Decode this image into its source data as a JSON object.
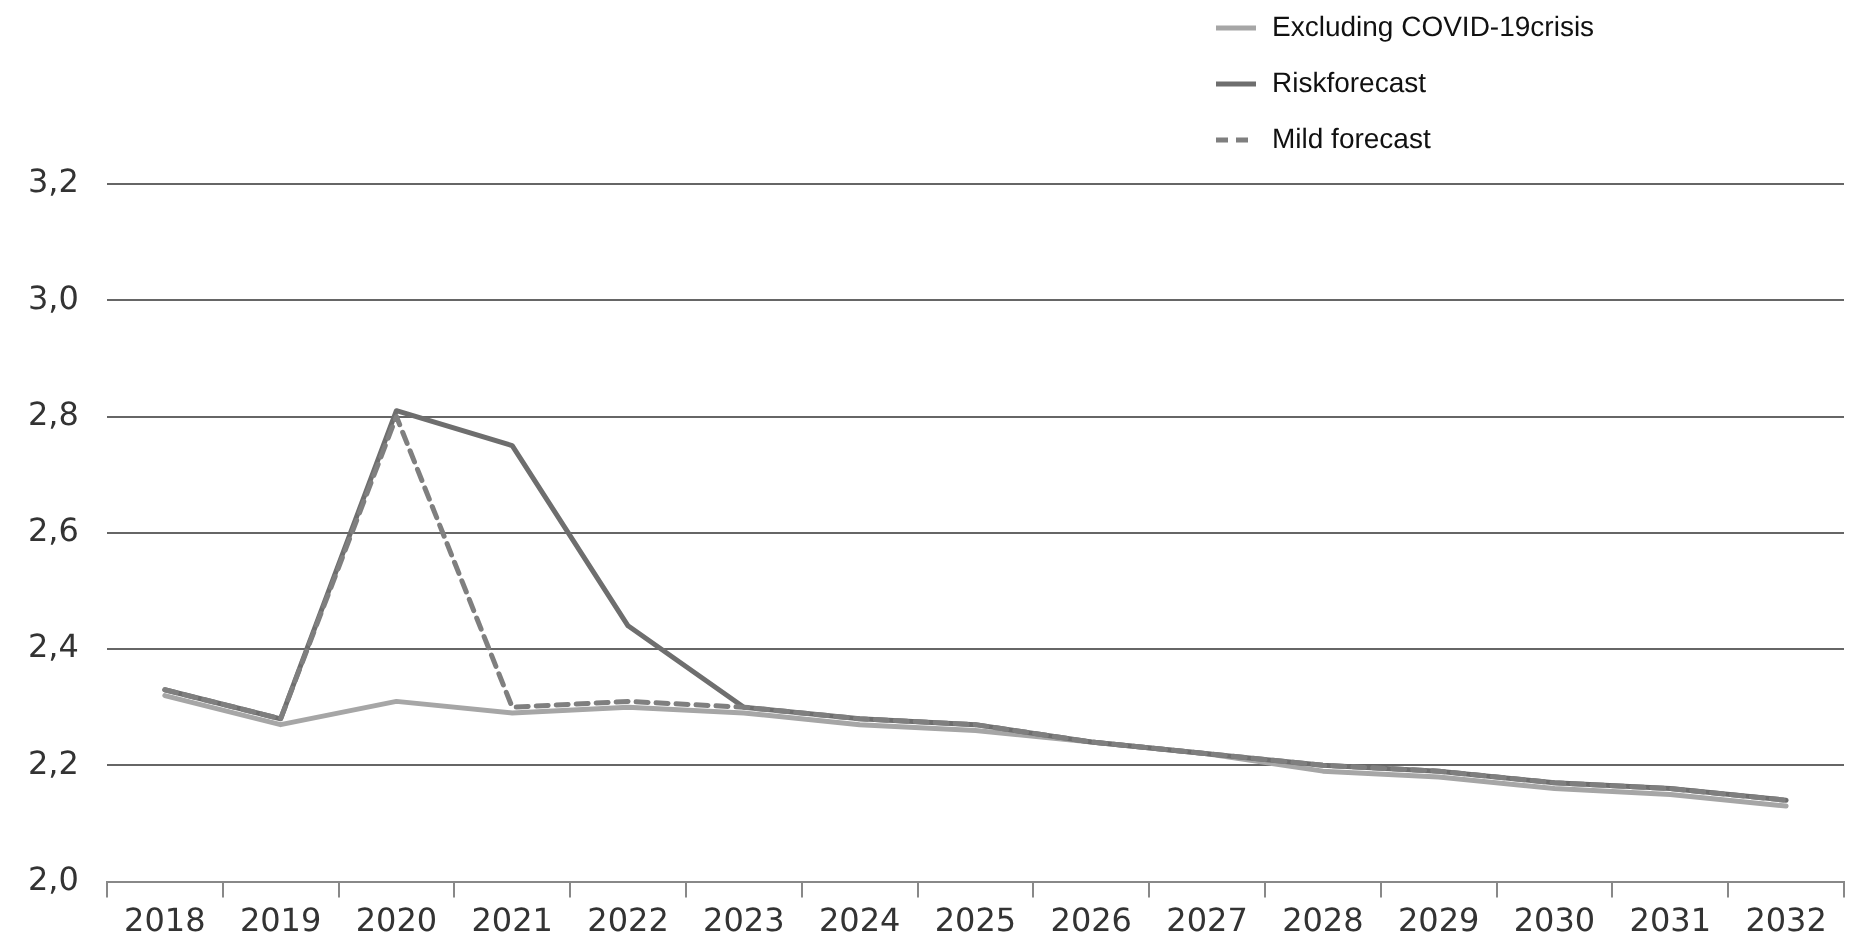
{
  "chart_data": {
    "type": "line",
    "categories": [
      "2018",
      "2019",
      "2020",
      "2021",
      "2022",
      "2023",
      "2024",
      "2025",
      "2026",
      "2027",
      "2028",
      "2029",
      "2030",
      "2031",
      "2032"
    ],
    "series": [
      {
        "name": "Excluding COVID-19crisis",
        "color": "#a6a6a6",
        "values": [
          2.32,
          2.27,
          2.31,
          2.29,
          2.3,
          2.29,
          2.27,
          2.26,
          2.24,
          2.22,
          2.19,
          2.18,
          2.16,
          2.15,
          2.13
        ]
      },
      {
        "name": "Riskforecast",
        "color": "#6e6e6e",
        "values": [
          2.33,
          2.28,
          2.81,
          2.75,
          2.44,
          2.3,
          2.28,
          2.27,
          2.24,
          2.22,
          2.2,
          2.19,
          2.17,
          2.16,
          2.14
        ]
      },
      {
        "name": "Mild forecast",
        "color": "#7f7f7f",
        "line_style": "dashed",
        "values": [
          2.33,
          2.28,
          2.8,
          2.3,
          2.31,
          2.3,
          2.28,
          2.27,
          2.24,
          2.22,
          2.2,
          2.19,
          2.17,
          2.16,
          2.14
        ]
      }
    ],
    "ylim": [
      2.0,
      3.2
    ],
    "yticks": [
      {
        "value": 2.0,
        "label": "2,0"
      },
      {
        "value": 2.2,
        "label": "2,2"
      },
      {
        "value": 2.4,
        "label": "2,4"
      },
      {
        "value": 2.6,
        "label": "2,6"
      },
      {
        "value": 2.8,
        "label": "2,8"
      },
      {
        "value": 3.0,
        "label": "3,0"
      },
      {
        "value": 3.2,
        "label": "3,2"
      }
    ],
    "grid": "y",
    "legend": "top right",
    "marker": "none"
  }
}
